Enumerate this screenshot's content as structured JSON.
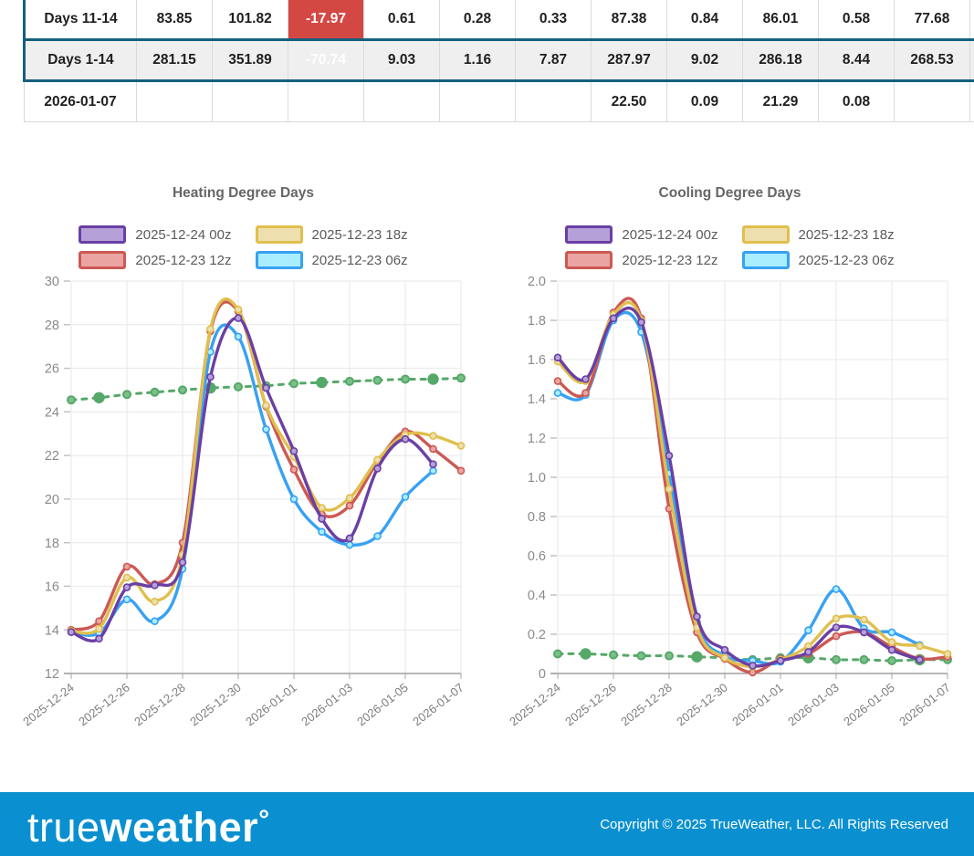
{
  "colors": {
    "accent_teal": "#15607d",
    "negative_red": "#d44843",
    "highlight_row_bg": "#efefef",
    "footer_blue": "#0a90d0",
    "grid_gray": "#e7e7e7"
  },
  "table": {
    "rows": [
      {
        "label": "Days 11-14",
        "highlighted": false,
        "negative_col": 2,
        "cells": [
          "83.85",
          "101.82",
          "-17.97",
          "0.61",
          "0.28",
          "0.33",
          "87.38",
          "0.84",
          "86.01",
          "0.58",
          "77.68",
          ""
        ]
      },
      {
        "label": "Days 1-14",
        "highlighted": true,
        "negative_col": 2,
        "cells": [
          "281.15",
          "351.89",
          "-70.74",
          "9.03",
          "1.16",
          "7.87",
          "287.97",
          "9.02",
          "286.18",
          "8.44",
          "268.53",
          ""
        ]
      },
      {
        "label": "2026-01-07",
        "highlighted": false,
        "negative_col": -1,
        "cells": [
          "",
          "",
          "",
          "",
          "",
          "",
          "22.50",
          "0.09",
          "21.29",
          "0.08",
          "",
          ""
        ]
      }
    ]
  },
  "chart_data": [
    {
      "type": "line",
      "title": "Heating Degree Days",
      "categories": [
        "2025-12-24",
        "2025-12-25",
        "2025-12-26",
        "2025-12-27",
        "2025-12-28",
        "2025-12-29",
        "2025-12-30",
        "2025-12-31",
        "2026-01-01",
        "2026-01-02",
        "2026-01-03",
        "2026-01-04",
        "2026-01-05",
        "2026-01-06",
        "2026-01-07"
      ],
      "x_tick_labels": [
        "2025-12-24",
        "2025-12-26",
        "2025-12-28",
        "2025-12-30",
        "2026-01-01",
        "2026-01-03",
        "2026-01-05",
        "2026-01-07"
      ],
      "ylim": [
        12,
        30
      ],
      "ytick_step": 2,
      "ytick_decimals": 0,
      "grid": true,
      "legend_position": "top",
      "series": [
        {
          "name": "2025-12-24 00z",
          "color": "#6a3fa5",
          "fill": "#b5a1d8",
          "in_legend": true,
          "dashed": false,
          "values": [
            13.9,
            13.6,
            15.95,
            16.05,
            17.1,
            25.6,
            28.3,
            25.1,
            22.2,
            19.1,
            18.2,
            21.4,
            22.75,
            21.6,
            null
          ]
        },
        {
          "name": "2025-12-23 18z",
          "color": "#e0bf4e",
          "fill": "#eddfae",
          "in_legend": true,
          "dashed": false,
          "values": [
            13.95,
            14.05,
            16.4,
            15.3,
            17.45,
            27.8,
            28.7,
            24.3,
            21.95,
            19.6,
            20.05,
            21.8,
            22.95,
            22.9,
            22.45
          ]
        },
        {
          "name": "2025-12-23 12z",
          "color": "#cc5954",
          "fill": "#eaa5a2",
          "in_legend": true,
          "dashed": false,
          "values": [
            14.0,
            14.4,
            16.9,
            16.1,
            18.0,
            27.7,
            28.6,
            24.25,
            21.35,
            19.3,
            19.7,
            21.7,
            23.1,
            22.3,
            21.3
          ]
        },
        {
          "name": "2025-12-23 06z",
          "color": "#38a1f3",
          "fill": "#a8eeff",
          "in_legend": true,
          "dashed": false,
          "values": [
            13.9,
            13.85,
            15.4,
            14.4,
            16.8,
            26.75,
            27.45,
            23.2,
            20.0,
            18.5,
            17.9,
            18.3,
            20.1,
            21.3,
            null
          ]
        },
        {
          "name": "normal",
          "color": "#55a868",
          "fill": "#7bbf8b",
          "in_legend": false,
          "dashed": true,
          "values": [
            24.55,
            24.65,
            24.8,
            24.9,
            25.0,
            25.1,
            25.15,
            25.2,
            25.3,
            25.35,
            25.4,
            25.45,
            25.5,
            25.5,
            25.55
          ]
        }
      ]
    },
    {
      "type": "line",
      "title": "Cooling Degree Days",
      "categories": [
        "2025-12-24",
        "2025-12-25",
        "2025-12-26",
        "2025-12-27",
        "2025-12-28",
        "2025-12-29",
        "2025-12-30",
        "2025-12-31",
        "2026-01-01",
        "2026-01-02",
        "2026-01-03",
        "2026-01-04",
        "2026-01-05",
        "2026-01-06",
        "2026-01-07"
      ],
      "x_tick_labels": [
        "2025-12-24",
        "2025-12-26",
        "2025-12-28",
        "2025-12-30",
        "2026-01-01",
        "2026-01-03",
        "2026-01-05",
        "2026-01-07"
      ],
      "ylim": [
        0,
        2
      ],
      "ytick_step": 0.2,
      "ytick_decimals": 1,
      "grid": true,
      "legend_position": "top",
      "series": [
        {
          "name": "2025-12-24 00z",
          "color": "#6a3fa5",
          "fill": "#b5a1d8",
          "in_legend": true,
          "dashed": false,
          "values": [
            1.61,
            1.5,
            1.81,
            1.79,
            1.11,
            0.29,
            0.12,
            0.04,
            0.065,
            0.11,
            0.235,
            0.21,
            0.12,
            0.07,
            null
          ]
        },
        {
          "name": "2025-12-23 18z",
          "color": "#e0bf4e",
          "fill": "#eddfae",
          "in_legend": true,
          "dashed": false,
          "values": [
            1.59,
            1.49,
            1.83,
            1.8,
            0.94,
            0.235,
            0.08,
            0.035,
            0.07,
            0.14,
            0.28,
            0.275,
            0.16,
            0.14,
            0.1
          ]
        },
        {
          "name": "2025-12-23 12z",
          "color": "#cc5954",
          "fill": "#eaa5a2",
          "in_legend": true,
          "dashed": false,
          "values": [
            1.49,
            1.43,
            1.84,
            1.81,
            0.84,
            0.21,
            0.075,
            0.005,
            0.075,
            0.1,
            0.19,
            0.21,
            0.135,
            0.075,
            0.085
          ]
        },
        {
          "name": "2025-12-23 06z",
          "color": "#38a1f3",
          "fill": "#a8eeff",
          "in_legend": true,
          "dashed": false,
          "values": [
            1.43,
            1.42,
            1.8,
            1.74,
            1.02,
            0.26,
            0.09,
            0.065,
            0.06,
            0.22,
            0.43,
            0.23,
            0.21,
            0.145,
            null
          ]
        },
        {
          "name": "normal",
          "color": "#55a868",
          "fill": "#7bbf8b",
          "in_legend": false,
          "dashed": true,
          "values": [
            0.1,
            0.1,
            0.095,
            0.09,
            0.09,
            0.085,
            0.08,
            0.07,
            0.08,
            0.08,
            0.07,
            0.07,
            0.065,
            0.07,
            0.07
          ]
        }
      ]
    }
  ],
  "footer": {
    "logo_true": "true",
    "logo_weather": "weather",
    "logo_degree": "°",
    "copyright": "Copyright © 2025 TrueWeather, LLC. All Rights Reserved"
  }
}
